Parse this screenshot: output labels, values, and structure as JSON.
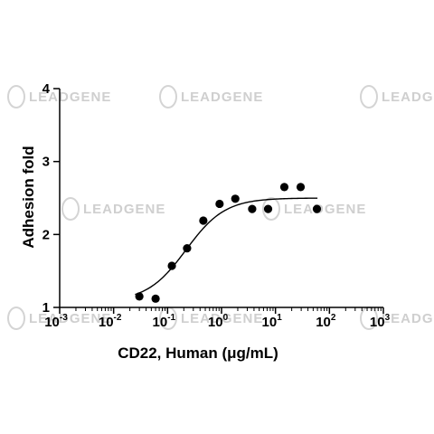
{
  "watermark": {
    "brand": "LEADGENE"
  },
  "chart_data": {
    "type": "scatter",
    "title": "",
    "xlabel": "CD22, Human (μg/mL)",
    "ylabel": "Adhesion fold",
    "x_scale": "log10",
    "xlim": [
      0.001,
      1000
    ],
    "ylim": [
      1,
      4
    ],
    "x_ticks": [
      {
        "base": "10",
        "exp": "-3"
      },
      {
        "base": "10",
        "exp": "-2"
      },
      {
        "base": "10",
        "exp": "-1"
      },
      {
        "base": "10",
        "exp": "0"
      },
      {
        "base": "10",
        "exp": "1"
      },
      {
        "base": "10",
        "exp": "2"
      },
      {
        "base": "10",
        "exp": "3"
      }
    ],
    "y_ticks": [
      "1",
      "2",
      "3",
      "4"
    ],
    "grid": false,
    "legend": "none",
    "series": [
      {
        "marker": "circle",
        "color": "#000000",
        "points": [
          {
            "x": 0.03,
            "y": 1.15
          },
          {
            "x": 0.06,
            "y": 1.12
          },
          {
            "x": 0.12,
            "y": 1.57
          },
          {
            "x": 0.23,
            "y": 1.81
          },
          {
            "x": 0.46,
            "y": 2.19
          },
          {
            "x": 0.92,
            "y": 2.42
          },
          {
            "x": 1.8,
            "y": 2.49
          },
          {
            "x": 3.7,
            "y": 2.35
          },
          {
            "x": 7.3,
            "y": 2.35
          },
          {
            "x": 14.6,
            "y": 2.65
          },
          {
            "x": 29.3,
            "y": 2.65
          },
          {
            "x": 58.6,
            "y": 2.35
          }
        ]
      }
    ],
    "fit": {
      "type": "sigmoidal",
      "bottom": 1.08,
      "top": 2.5,
      "ec50": 0.22,
      "hill_slope": 1.2,
      "x_range": [
        0.025,
        60
      ]
    }
  }
}
